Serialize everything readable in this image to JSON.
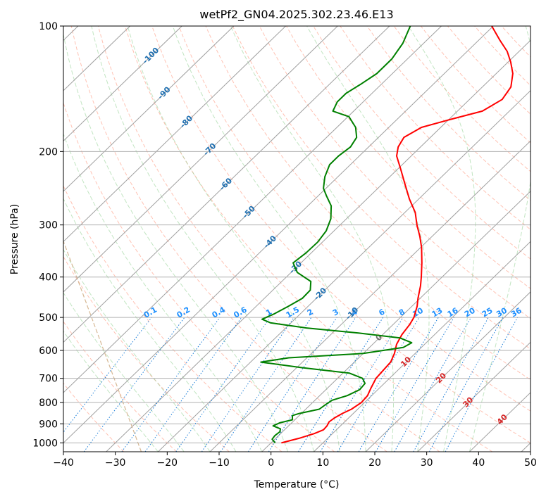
{
  "chart_data": {
    "type": "line",
    "subtype": "skew-T log-P diagram",
    "title": "wetPf2_GN04.2025.302.23.46.E13",
    "xlabel": "Temperature (°C)",
    "ylabel": "Pressure (hPa)",
    "xlim": [
      -40,
      50
    ],
    "ylim": [
      1050,
      100
    ],
    "y_scale": "log",
    "x_ticks": [
      -40,
      -30,
      -20,
      -10,
      0,
      10,
      20,
      30,
      40,
      50
    ],
    "y_ticks": [
      100,
      200,
      300,
      400,
      500,
      600,
      700,
      800,
      900,
      1000
    ],
    "grid": true,
    "series": [
      {
        "role": "temperature",
        "color": "#ff0000",
        "points": [
          [
            1000,
            2.0
          ],
          [
            975,
            4.5
          ],
          [
            950,
            6.5
          ],
          [
            930,
            7.5
          ],
          [
            910,
            7.4
          ],
          [
            890,
            7.0
          ],
          [
            870,
            7.3
          ],
          [
            850,
            7.9
          ],
          [
            830,
            8.8
          ],
          [
            800,
            9.4
          ],
          [
            770,
            9.2
          ],
          [
            740,
            8.4
          ],
          [
            700,
            7.4
          ],
          [
            670,
            7.2
          ],
          [
            640,
            7.0
          ],
          [
            610,
            6.0
          ],
          [
            580,
            4.6
          ],
          [
            550,
            3.7
          ],
          [
            520,
            3.2
          ],
          [
            500,
            2.6
          ],
          [
            470,
            1.0
          ],
          [
            450,
            -0.4
          ],
          [
            420,
            -2.4
          ],
          [
            400,
            -4.0
          ],
          [
            370,
            -6.7
          ],
          [
            340,
            -9.8
          ],
          [
            320,
            -12.3
          ],
          [
            300,
            -15.2
          ],
          [
            280,
            -18.0
          ],
          [
            260,
            -21.8
          ],
          [
            240,
            -25.5
          ],
          [
            220,
            -29.5
          ],
          [
            205,
            -32.8
          ],
          [
            195,
            -34.3
          ],
          [
            185,
            -35.1
          ],
          [
            175,
            -33.7
          ],
          [
            168,
            -30.0
          ],
          [
            160,
            -25.2
          ],
          [
            150,
            -23.7
          ],
          [
            140,
            -24.5
          ],
          [
            130,
            -26.8
          ],
          [
            122,
            -29.5
          ],
          [
            115,
            -32.3
          ],
          [
            108,
            -36.0
          ],
          [
            100,
            -40.3
          ]
        ]
      },
      {
        "role": "dewpoint",
        "color": "#008000",
        "points": [
          [
            1000,
            0.8
          ],
          [
            980,
            -0.5
          ],
          [
            960,
            -0.7
          ],
          [
            940,
            -0.5
          ],
          [
            925,
            -1.0
          ],
          [
            910,
            -3.0
          ],
          [
            895,
            -2.3
          ],
          [
            880,
            -0.5
          ],
          [
            860,
            -1.3
          ],
          [
            850,
            -0.4
          ],
          [
            830,
            2.6
          ],
          [
            810,
            2.9
          ],
          [
            790,
            3.3
          ],
          [
            770,
            5.3
          ],
          [
            745,
            6.5
          ],
          [
            720,
            6.3
          ],
          [
            700,
            4.8
          ],
          [
            680,
            1.2
          ],
          [
            660,
            -9.0
          ],
          [
            640,
            -18.0
          ],
          [
            625,
            -13.5
          ],
          [
            610,
            0.0
          ],
          [
            590,
            6.5
          ],
          [
            575,
            7.2
          ],
          [
            560,
            4.0
          ],
          [
            545,
            -5.0
          ],
          [
            530,
            -16.0
          ],
          [
            515,
            -24.0
          ],
          [
            505,
            -26.3
          ],
          [
            490,
            -25.0
          ],
          [
            470,
            -23.8
          ],
          [
            450,
            -22.7
          ],
          [
            430,
            -22.8
          ],
          [
            410,
            -24.4
          ],
          [
            390,
            -28.8
          ],
          [
            370,
            -31.5
          ],
          [
            350,
            -31.0
          ],
          [
            330,
            -30.9
          ],
          [
            310,
            -31.5
          ],
          [
            290,
            -33.0
          ],
          [
            270,
            -35.5
          ],
          [
            255,
            -38.5
          ],
          [
            245,
            -40.5
          ],
          [
            230,
            -42.5
          ],
          [
            215,
            -44.0
          ],
          [
            205,
            -44.0
          ],
          [
            195,
            -43.5
          ],
          [
            185,
            -44.2
          ],
          [
            175,
            -46.4
          ],
          [
            165,
            -49.8
          ],
          [
            160,
            -54.0
          ],
          [
            152,
            -55.0
          ],
          [
            145,
            -55.0
          ],
          [
            138,
            -54.0
          ],
          [
            130,
            -53.0
          ],
          [
            120,
            -53.0
          ],
          [
            110,
            -54.0
          ],
          [
            100,
            -56.0
          ]
        ]
      }
    ],
    "isotherm_labels": [
      "-100",
      "-90",
      "-80",
      "-70",
      "-60",
      "-50",
      "-40",
      "-30",
      "-20",
      "-10",
      "0",
      "10",
      "20",
      "30",
      "40"
    ],
    "mixing_ratio_labels": [
      "0.1",
      "0.2",
      "0.4",
      "0.6",
      "1",
      "1.5",
      "2",
      "3",
      "4",
      "6",
      "8",
      "10",
      "13",
      "16",
      "20",
      "25",
      "30",
      "36"
    ]
  }
}
